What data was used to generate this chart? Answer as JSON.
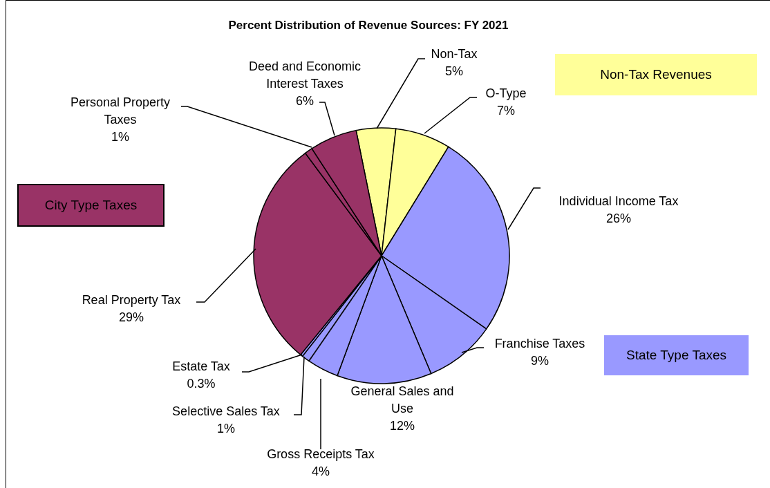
{
  "chart_data": {
    "type": "pie",
    "title": "Percent Distribution of Revenue Sources: FY 2021",
    "categories": [
      "Non-Tax",
      "O-Type",
      "Individual Income Tax",
      "Franchise Taxes",
      "General Sales and Use",
      "Gross Receipts Tax",
      "Selective Sales Tax",
      "Estate Tax",
      "Real Property Tax",
      "Personal Property Taxes",
      "Deed and Economic Interest Taxes"
    ],
    "values": [
      5,
      7,
      26,
      9,
      12,
      4,
      1,
      0.3,
      29,
      1,
      6
    ],
    "colors": [
      "#ffff99",
      "#ffff99",
      "#9999ff",
      "#9999ff",
      "#9999ff",
      "#9999ff",
      "#9999ff",
      "#9999ff",
      "#993366",
      "#993366",
      "#993366"
    ],
    "annotations": [
      "Non-Tax Revenues",
      "State Type Taxes",
      "City Type Taxes"
    ],
    "value_labels": [
      "5%",
      "7%",
      "26%",
      "9%",
      "12%",
      "4%",
      "1%",
      "0.3%",
      "29%",
      "1%",
      "6%"
    ]
  }
}
